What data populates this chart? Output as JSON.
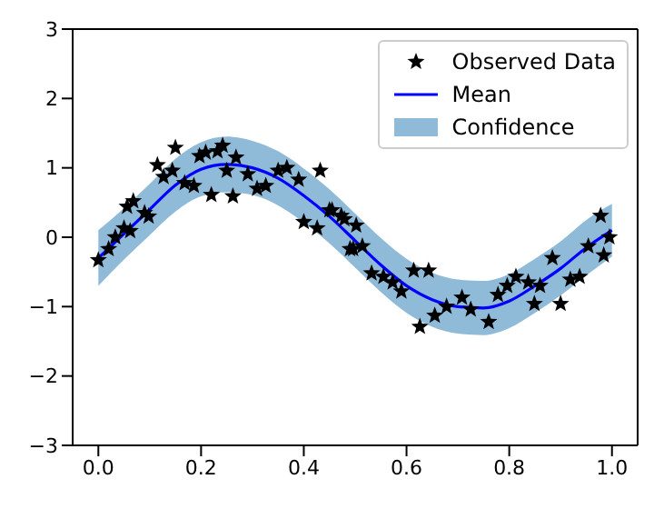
{
  "chart_data": {
    "type": "scatter",
    "xlim": [
      -0.05,
      1.05
    ],
    "ylim": [
      -3,
      3
    ],
    "xticks": [
      {
        "value": 0,
        "label": "0.0"
      },
      {
        "value": 0.2,
        "label": "0.2"
      },
      {
        "value": 0.4,
        "label": "0.4"
      },
      {
        "value": 0.6,
        "label": "0.6"
      },
      {
        "value": 0.8,
        "label": "0.8"
      },
      {
        "value": 1,
        "label": "1.0"
      }
    ],
    "yticks": [
      {
        "value": -3,
        "label": "−3"
      },
      {
        "value": -2,
        "label": "−2"
      },
      {
        "value": -1,
        "label": "−1"
      },
      0,
      1,
      2,
      3
    ],
    "grid": false,
    "legend": "top right",
    "series": [
      {
        "name": "Confidence",
        "type": "area",
        "color": "#8fbbd9"
      },
      {
        "name": "Mean",
        "type": "line",
        "color": "#0000ff",
        "marker": "none",
        "x": [
          0,
          0.05,
          0.1,
          0.15,
          0.2,
          0.25,
          0.3,
          0.35,
          0.4,
          0.45,
          0.5,
          0.55,
          0.6,
          0.65,
          0.7,
          0.75,
          0.8,
          0.85,
          0.9,
          0.95,
          1
        ],
        "values": [
          -0.3,
          0.05,
          0.4,
          0.75,
          0.98,
          1.05,
          1.0,
          0.85,
          0.6,
          0.3,
          -0.05,
          -0.4,
          -0.7,
          -0.9,
          -1.0,
          -1.02,
          -0.92,
          -0.7,
          -0.45,
          -0.15,
          0.1
        ],
        "lower": [
          -0.7,
          -0.32,
          0.03,
          0.37,
          0.59,
          0.65,
          0.61,
          0.46,
          0.21,
          -0.09,
          -0.44,
          -0.79,
          -1.09,
          -1.29,
          -1.39,
          -1.41,
          -1.31,
          -1.09,
          -0.84,
          -0.55,
          -0.28
        ],
        "upper": [
          0.1,
          0.42,
          0.77,
          1.13,
          1.37,
          1.45,
          1.39,
          1.24,
          0.99,
          0.69,
          0.34,
          -0.01,
          -0.31,
          -0.51,
          -0.61,
          -0.63,
          -0.53,
          -0.31,
          -0.06,
          0.25,
          0.48
        ]
      },
      {
        "name": "Observed Data",
        "color": "#000000",
        "marker": "star",
        "x": [
          0,
          0.02,
          0.033,
          0.05,
          0.056,
          0.062,
          0.068,
          0.09,
          0.098,
          0.115,
          0.127,
          0.144,
          0.15,
          0.168,
          0.186,
          0.197,
          0.209,
          0.22,
          0.232,
          0.242,
          0.25,
          0.262,
          0.268,
          0.291,
          0.309,
          0.326,
          0.35,
          0.367,
          0.39,
          0.4,
          0.426,
          0.432,
          0.45,
          0.455,
          0.473,
          0.479,
          0.49,
          0.496,
          0.502,
          0.514,
          0.532,
          0.555,
          0.573,
          0.59,
          0.614,
          0.626,
          0.643,
          0.655,
          0.678,
          0.708,
          0.725,
          0.76,
          0.778,
          0.796,
          0.813,
          0.837,
          0.849,
          0.86,
          0.884,
          0.9,
          0.919,
          0.937,
          0.954,
          0.978,
          0.984,
          0.995
        ],
        "values": [
          -0.33,
          -0.17,
          0,
          0.13,
          0.44,
          0.09,
          0.52,
          0.35,
          0.3,
          1.04,
          0.87,
          0.96,
          1.29,
          0.78,
          0.74,
          1.17,
          1.22,
          0.61,
          1.24,
          1.32,
          0.96,
          0.59,
          1.15,
          0.91,
          0.7,
          0.74,
          0.96,
          1.0,
          0.83,
          0.22,
          0.13,
          0.96,
          0.39,
          0.39,
          0.31,
          0.26,
          -0.17,
          -0.17,
          0.17,
          -0.13,
          -0.52,
          -0.57,
          -0.65,
          -0.78,
          -0.48,
          -1.29,
          -0.48,
          -1.13,
          -1.0,
          -0.87,
          -1.04,
          -1.22,
          -0.83,
          -0.7,
          -0.57,
          -0.65,
          -0.96,
          -0.7,
          -0.3,
          -0.96,
          -0.61,
          -0.57,
          -0.13,
          0.31,
          -0.26,
          0
        ]
      }
    ]
  }
}
